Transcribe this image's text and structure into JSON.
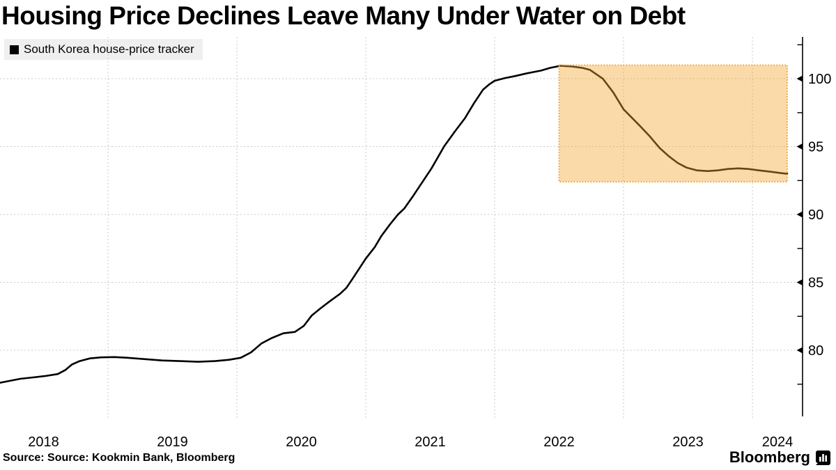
{
  "header": {
    "title": "Housing Price Declines Leave Many Under Water on Debt"
  },
  "legend": {
    "label": "South Korea house-price tracker",
    "swatch_color": "#000000"
  },
  "footer": {
    "source": "Source: Source: Kookmin Bank, Bloomberg",
    "brand": "Bloomberg"
  },
  "icons": {
    "legend_swatch": "black-square-icon",
    "brand_icon": "bloomberg-bar-chart-icon"
  },
  "colors": {
    "line": "#000000",
    "grid": "#c9c9c9",
    "axis": "#000000",
    "highlight_fill": "#f6a733",
    "highlight_fill_opacity": 0.42,
    "highlight_border": "#ee9d2b",
    "legend_bg": "#efefef",
    "text": "#000000"
  },
  "chart_data": {
    "type": "line",
    "title": "Housing Price Declines Leave Many Under Water on Debt",
    "series_name": "South Korea house-price tracker",
    "xlabel": "",
    "ylabel": "",
    "grid": true,
    "legend_position": "top-left",
    "x_domain": [
      2018.162,
      2024.389
    ],
    "y_domain": [
      75.13,
      103.08
    ],
    "x_gridline_years": [
      2019,
      2020,
      2021,
      2022,
      2023,
      2024
    ],
    "x_ticks": [
      {
        "year": 2018,
        "label": "2018"
      },
      {
        "year": 2019,
        "label": "2019"
      },
      {
        "year": 2020,
        "label": "2020"
      },
      {
        "year": 2021,
        "label": "2021"
      },
      {
        "year": 2022,
        "label": "2022"
      },
      {
        "year": 2023,
        "label": "2023"
      },
      {
        "year": 2024,
        "label": "2024"
      }
    ],
    "y_ticks_major": [
      {
        "value": 100,
        "label": "100"
      },
      {
        "value": 95,
        "label": "95"
      },
      {
        "value": 90,
        "label": "90"
      },
      {
        "value": 85,
        "label": "85"
      },
      {
        "value": 80,
        "label": "80"
      }
    ],
    "y_ticks_minor": [
      102.5,
      97.5,
      92.5,
      87.5,
      82.5,
      77.5
    ],
    "highlight_region": {
      "x0": 2022.5,
      "x1": 2024.27,
      "y0": 92.4,
      "y1": 101.0
    },
    "points": [
      [
        2018.16,
        77.6
      ],
      [
        2018.24,
        77.75
      ],
      [
        2018.32,
        77.9
      ],
      [
        2018.42,
        78.0
      ],
      [
        2018.51,
        78.1
      ],
      [
        2018.61,
        78.25
      ],
      [
        2018.67,
        78.55
      ],
      [
        2018.72,
        78.95
      ],
      [
        2018.78,
        79.2
      ],
      [
        2018.86,
        79.4
      ],
      [
        2018.95,
        79.48
      ],
      [
        2019.05,
        79.5
      ],
      [
        2019.15,
        79.45
      ],
      [
        2019.28,
        79.35
      ],
      [
        2019.42,
        79.25
      ],
      [
        2019.56,
        79.2
      ],
      [
        2019.7,
        79.15
      ],
      [
        2019.83,
        79.2
      ],
      [
        2019.94,
        79.3
      ],
      [
        2020.03,
        79.45
      ],
      [
        2020.11,
        79.85
      ],
      [
        2020.19,
        80.5
      ],
      [
        2020.27,
        80.9
      ],
      [
        2020.36,
        81.25
      ],
      [
        2020.45,
        81.35
      ],
      [
        2020.52,
        81.8
      ],
      [
        2020.58,
        82.55
      ],
      [
        2020.65,
        83.1
      ],
      [
        2020.72,
        83.6
      ],
      [
        2020.8,
        84.15
      ],
      [
        2020.85,
        84.6
      ],
      [
        2020.9,
        85.3
      ],
      [
        2021.0,
        86.75
      ],
      [
        2021.07,
        87.6
      ],
      [
        2021.12,
        88.4
      ],
      [
        2021.19,
        89.3
      ],
      [
        2021.25,
        90.0
      ],
      [
        2021.3,
        90.45
      ],
      [
        2021.37,
        91.4
      ],
      [
        2021.44,
        92.4
      ],
      [
        2021.51,
        93.4
      ],
      [
        2021.61,
        95.05
      ],
      [
        2021.69,
        96.1
      ],
      [
        2021.77,
        97.1
      ],
      [
        2021.84,
        98.2
      ],
      [
        2021.91,
        99.2
      ],
      [
        2021.96,
        99.6
      ],
      [
        2022.0,
        99.85
      ],
      [
        2022.08,
        100.05
      ],
      [
        2022.16,
        100.2
      ],
      [
        2022.25,
        100.4
      ],
      [
        2022.36,
        100.6
      ],
      [
        2022.43,
        100.8
      ],
      [
        2022.51,
        100.95
      ],
      [
        2022.6,
        100.9
      ],
      [
        2022.68,
        100.8
      ],
      [
        2022.74,
        100.65
      ],
      [
        2022.84,
        100.0
      ],
      [
        2022.92,
        99.0
      ],
      [
        2023.0,
        97.75
      ],
      [
        2023.12,
        96.6
      ],
      [
        2023.2,
        95.8
      ],
      [
        2023.28,
        94.9
      ],
      [
        2023.35,
        94.3
      ],
      [
        2023.42,
        93.8
      ],
      [
        2023.49,
        93.45
      ],
      [
        2023.57,
        93.25
      ],
      [
        2023.65,
        93.2
      ],
      [
        2023.73,
        93.25
      ],
      [
        2023.81,
        93.35
      ],
      [
        2023.89,
        93.4
      ],
      [
        2023.97,
        93.35
      ],
      [
        2024.05,
        93.25
      ],
      [
        2024.14,
        93.15
      ],
      [
        2024.22,
        93.05
      ],
      [
        2024.27,
        93.0
      ]
    ]
  }
}
